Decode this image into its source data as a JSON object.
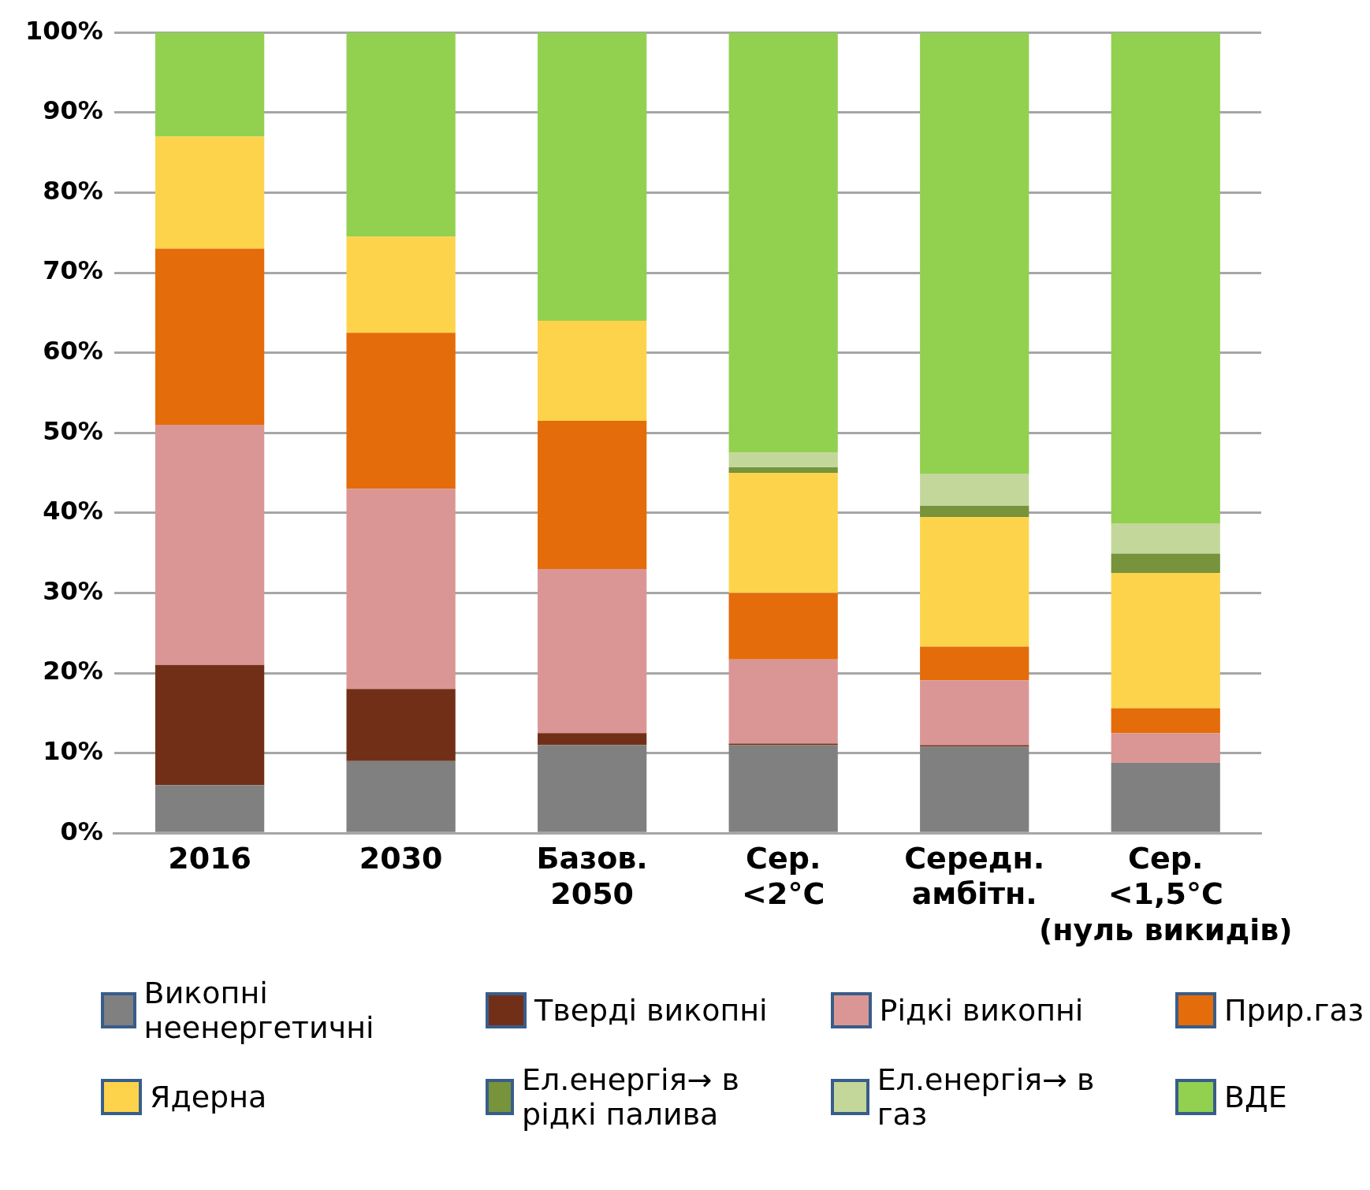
{
  "chart_data": {
    "type": "bar",
    "stacked": true,
    "categories": [
      "2016",
      "2030",
      "Базов.\n2050",
      "Сер.\n<2°C",
      "Середн.\nамбітн.",
      "Сер.\n<1,5°C\n(нуль викидів)"
    ],
    "series": [
      {
        "name": "Викопні неенергетичні",
        "color": "#808080",
        "values": [
          6,
          9,
          11,
          11,
          10.8,
          8.8
        ]
      },
      {
        "name": "Тверді викопні",
        "color": "#722f18",
        "values": [
          15,
          9,
          1.5,
          0.2,
          0.2,
          0
        ]
      },
      {
        "name": "Рідкі викопні",
        "color": "#da9694",
        "values": [
          30,
          25,
          20.5,
          10.5,
          8.1,
          3.7
        ]
      },
      {
        "name": "Прир.газ",
        "color": "#e46c0a",
        "values": [
          22,
          19.5,
          18.5,
          8.3,
          4.2,
          3.1
        ]
      },
      {
        "name": "Ядерна",
        "color": "#fdd34b",
        "values": [
          14,
          12,
          12.5,
          15,
          16.2,
          16.9
        ]
      },
      {
        "name": "Ел.енергія→ в рідкі палива",
        "color": "#77933c",
        "values": [
          0,
          0,
          0,
          0.7,
          1.4,
          2.4
        ]
      },
      {
        "name": "Ел.енергія→ в газ",
        "color": "#c4d79b",
        "values": [
          0,
          0,
          0,
          1.8,
          4,
          3.8
        ]
      },
      {
        "name": "ВДЕ",
        "color": "#92d050",
        "values": [
          13,
          25.5,
          36,
          52.5,
          55.1,
          61.3
        ]
      }
    ],
    "ylim": [
      0,
      100
    ],
    "yticks": [
      {
        "value": 0,
        "label": "0%"
      },
      {
        "value": 10,
        "label": "10%"
      },
      {
        "value": 20,
        "label": "20%"
      },
      {
        "value": 30,
        "label": "30%"
      },
      {
        "value": 40,
        "label": "40%"
      },
      {
        "value": 50,
        "label": "50%"
      },
      {
        "value": 60,
        "label": "60%"
      },
      {
        "value": 70,
        "label": "70%"
      },
      {
        "value": 80,
        "label": "80%"
      },
      {
        "value": 90,
        "label": "90%"
      },
      {
        "value": 100,
        "label": "100%"
      }
    ],
    "grid": "y",
    "legend": "bottom"
  }
}
